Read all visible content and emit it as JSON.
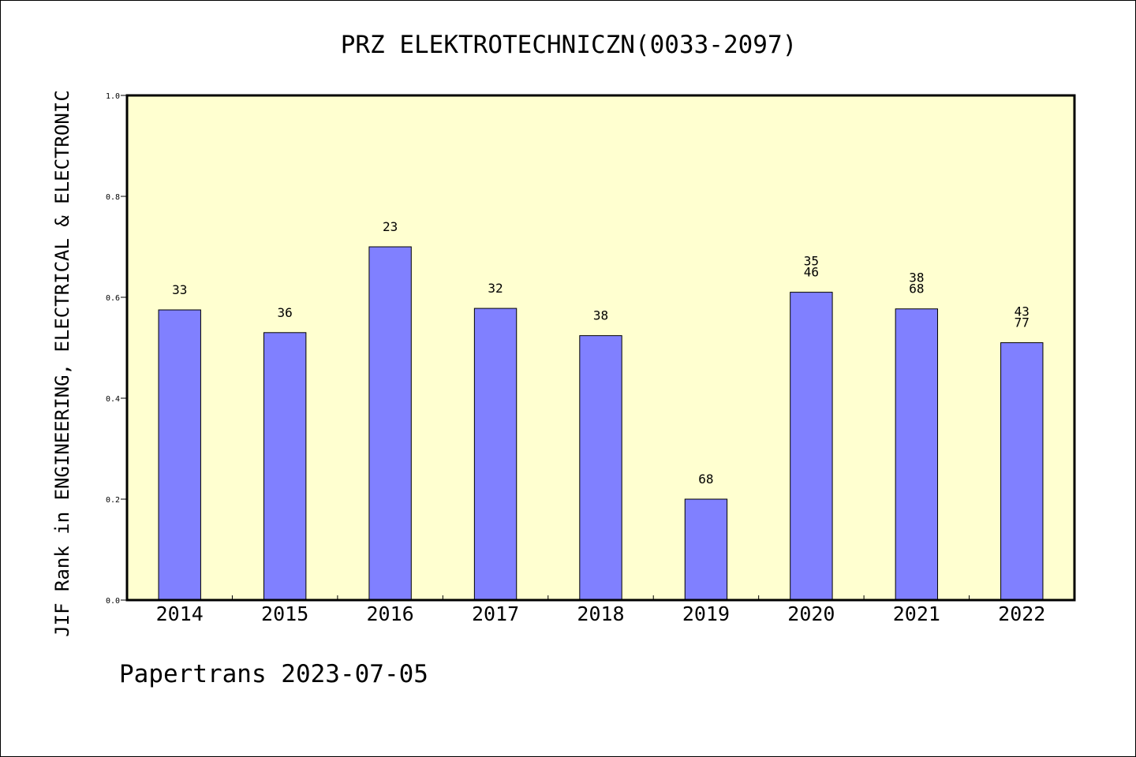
{
  "chart_data": {
    "type": "bar",
    "title": "PRZ ELEKTROTECHNICZN(0033-2097)",
    "ylabel": "JIF Rank in ENGINEERING, ELECTRICAL & ELECTRONIC",
    "xlabel": "",
    "categories": [
      "2014",
      "2015",
      "2016",
      "2017",
      "2018",
      "2019",
      "2020",
      "2021",
      "2022"
    ],
    "values": [
      0.575,
      0.53,
      0.7,
      0.578,
      0.524,
      0.2,
      0.61,
      0.577,
      0.51
    ],
    "bar_labels": [
      [
        "33"
      ],
      [
        "36"
      ],
      [
        "23"
      ],
      [
        "32"
      ],
      [
        "38"
      ],
      [
        "68"
      ],
      [
        "35",
        "46"
      ],
      [
        "38",
        "68"
      ],
      [
        "43",
        "77"
      ]
    ],
    "ylim": [
      0,
      1.0
    ],
    "yticks": [
      "0.0",
      "0.2",
      "0.4",
      "0.6",
      "0.8",
      "1.0"
    ],
    "grid": false,
    "colors": {
      "bar_fill": "#8080ff",
      "plot_background": "#ffffd0",
      "axis": "#000000"
    }
  },
  "footer": "Papertrans 2023-07-05"
}
